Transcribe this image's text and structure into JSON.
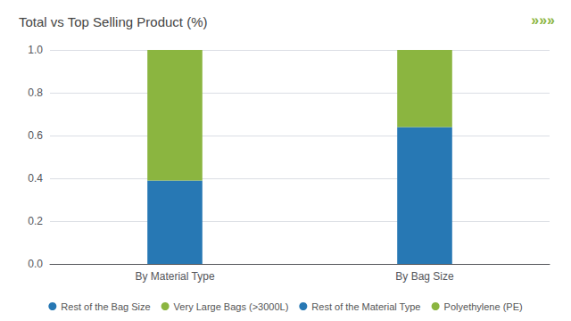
{
  "chart_data": {
    "type": "bar",
    "title": "Total vs Top Selling Product (%)",
    "annotations": [
      "»»»"
    ],
    "categories": [
      "By Material Type",
      "By Bag Size"
    ],
    "series": [
      {
        "name": "Rest of the Bag Size",
        "color": "#2778b4",
        "values": [
          null,
          0.64
        ]
      },
      {
        "name": "Very Large Bags (>3000L)",
        "color": "#8bb540",
        "values": [
          null,
          0.36
        ]
      },
      {
        "name": "Rest of the Material Type",
        "color": "#2778b4",
        "values": [
          0.39,
          null
        ]
      },
      {
        "name": "Polyethylene (PE)",
        "color": "#8bb540",
        "values": [
          0.61,
          null
        ]
      }
    ],
    "stacked": true,
    "ylim": [
      0,
      1
    ],
    "yticks": [
      {
        "value": 0,
        "label": "0.0"
      },
      0.2,
      0.4,
      0.6,
      0.8,
      {
        "value": 1,
        "label": "1.0"
      }
    ],
    "grid": true,
    "legend": "bottom"
  }
}
